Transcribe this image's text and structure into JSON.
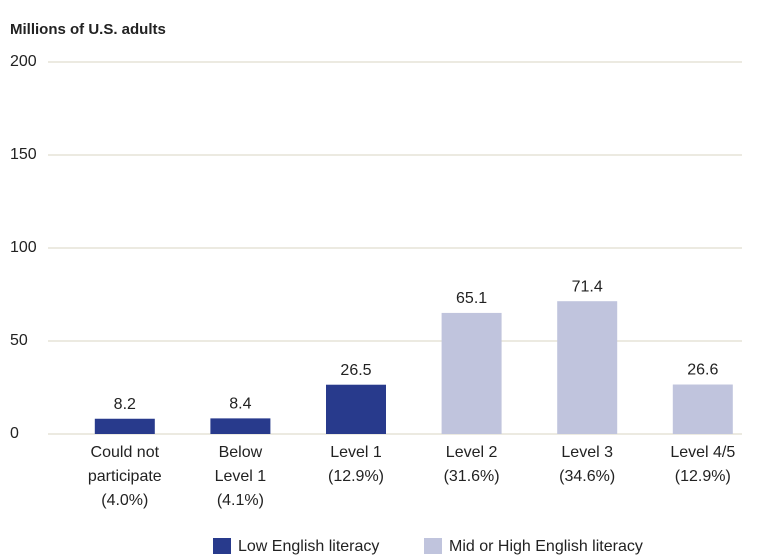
{
  "chart_data": {
    "type": "bar",
    "y_axis_label": "Millions of U.S. adults",
    "categories": [
      [
        "Could not",
        "participate",
        "(4.0%)"
      ],
      [
        "Below",
        "Level 1",
        "(4.1%)"
      ],
      [
        "Level 1",
        "(12.9%)"
      ],
      [
        "Level 2",
        "(31.6%)"
      ],
      [
        "Level 3",
        "(34.6%)"
      ],
      [
        "Level 4/5",
        "(12.9%)"
      ]
    ],
    "series": [
      {
        "name": "Low English literacy",
        "color": "#283a8c",
        "values": [
          8.2,
          8.4,
          26.5,
          null,
          null,
          null
        ]
      },
      {
        "name": "Mid or High English literacy",
        "color": "#c0c4dd",
        "values": [
          null,
          null,
          null,
          65.1,
          71.4,
          26.6
        ]
      }
    ],
    "ylim": [
      0,
      200
    ],
    "yticks": [
      0,
      50,
      100,
      150,
      200
    ],
    "grid": true,
    "legend": "bottom"
  }
}
